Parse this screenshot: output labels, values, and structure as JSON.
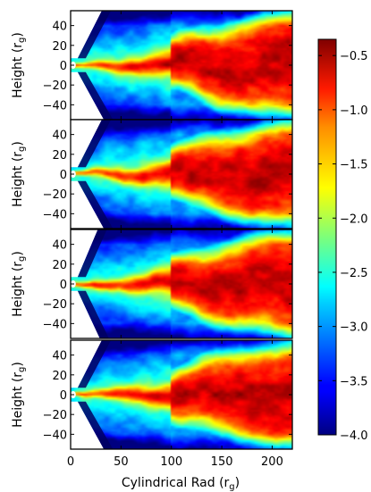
{
  "chart_data": {
    "type": "heatmap",
    "xlabel_main": "Cylindrical Rad (r",
    "xlabel_sub": "g",
    "xlabel_tail": ")",
    "ylabel_main": "Height (r",
    "ylabel_sub": "g",
    "ylabel_tail": ")",
    "xlim": [
      0,
      220
    ],
    "ylim": [
      -55,
      55
    ],
    "xticks": [
      0,
      50,
      100,
      150,
      200
    ],
    "yticks": [
      40,
      20,
      0,
      -20,
      -40
    ],
    "colorbar": {
      "vmin": -4.0,
      "vmax": -0.35,
      "ticks": [
        -0.5,
        -1.0,
        -1.5,
        -2.0,
        -2.5,
        -3.0,
        -3.5,
        -4.0
      ],
      "tick_labels": [
        "−0.5",
        "−1.0",
        "−1.5",
        "−2.0",
        "−2.5",
        "−3.0",
        "−3.5",
        "−4.0"
      ]
    },
    "panels": [
      {
        "id": 1,
        "seed": 11
      },
      {
        "id": 2,
        "seed": 23
      },
      {
        "id": 3,
        "seed": 37
      },
      {
        "id": 4,
        "seed": 53
      }
    ]
  }
}
